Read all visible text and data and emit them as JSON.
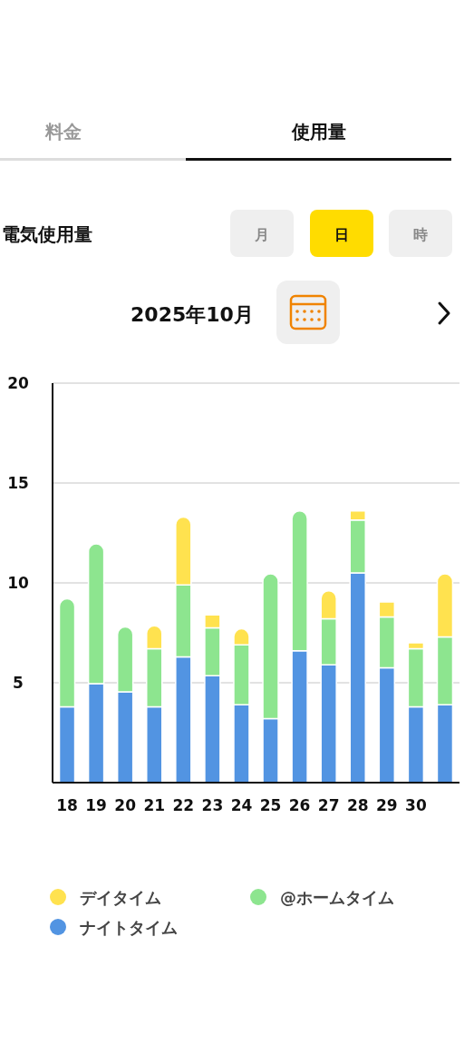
{
  "chart_data": {
    "type": "bar",
    "stacked": true,
    "categories": [
      "18",
      "19",
      "20",
      "21",
      "22",
      "23",
      "24",
      "25",
      "26",
      "27",
      "28",
      "29",
      "30",
      null
    ],
    "series": [
      {
        "name": "ナイトタイム",
        "color": "#5294e2",
        "values": [
          3.8,
          4.95,
          4.55,
          3.8,
          6.3,
          5.35,
          3.9,
          3.2,
          6.6,
          5.9,
          10.5,
          5.75,
          3.8,
          3.9
        ]
      },
      {
        "name": "@ホームタイム",
        "color": "#8de58f",
        "values": [
          5.4,
          7.0,
          3.25,
          2.9,
          3.6,
          2.4,
          3.0,
          7.25,
          7.0,
          2.3,
          2.65,
          2.55,
          2.9,
          3.4
        ]
      },
      {
        "name": "デイタイム",
        "color": "#ffe24f",
        "values": [
          null,
          null,
          null,
          1.15,
          3.4,
          0.65,
          0.8,
          null,
          null,
          1.4,
          0.45,
          0.75,
          0.3,
          3.15
        ]
      }
    ],
    "ylim": [
      0,
      20
    ],
    "yticks": [
      5,
      10,
      15,
      20
    ],
    "grid": "y",
    "legend": "bottom",
    "annotations": [
      "料金",
      "使用量",
      "電気使用量",
      "月",
      "日",
      "時",
      "2025年10月"
    ]
  }
}
